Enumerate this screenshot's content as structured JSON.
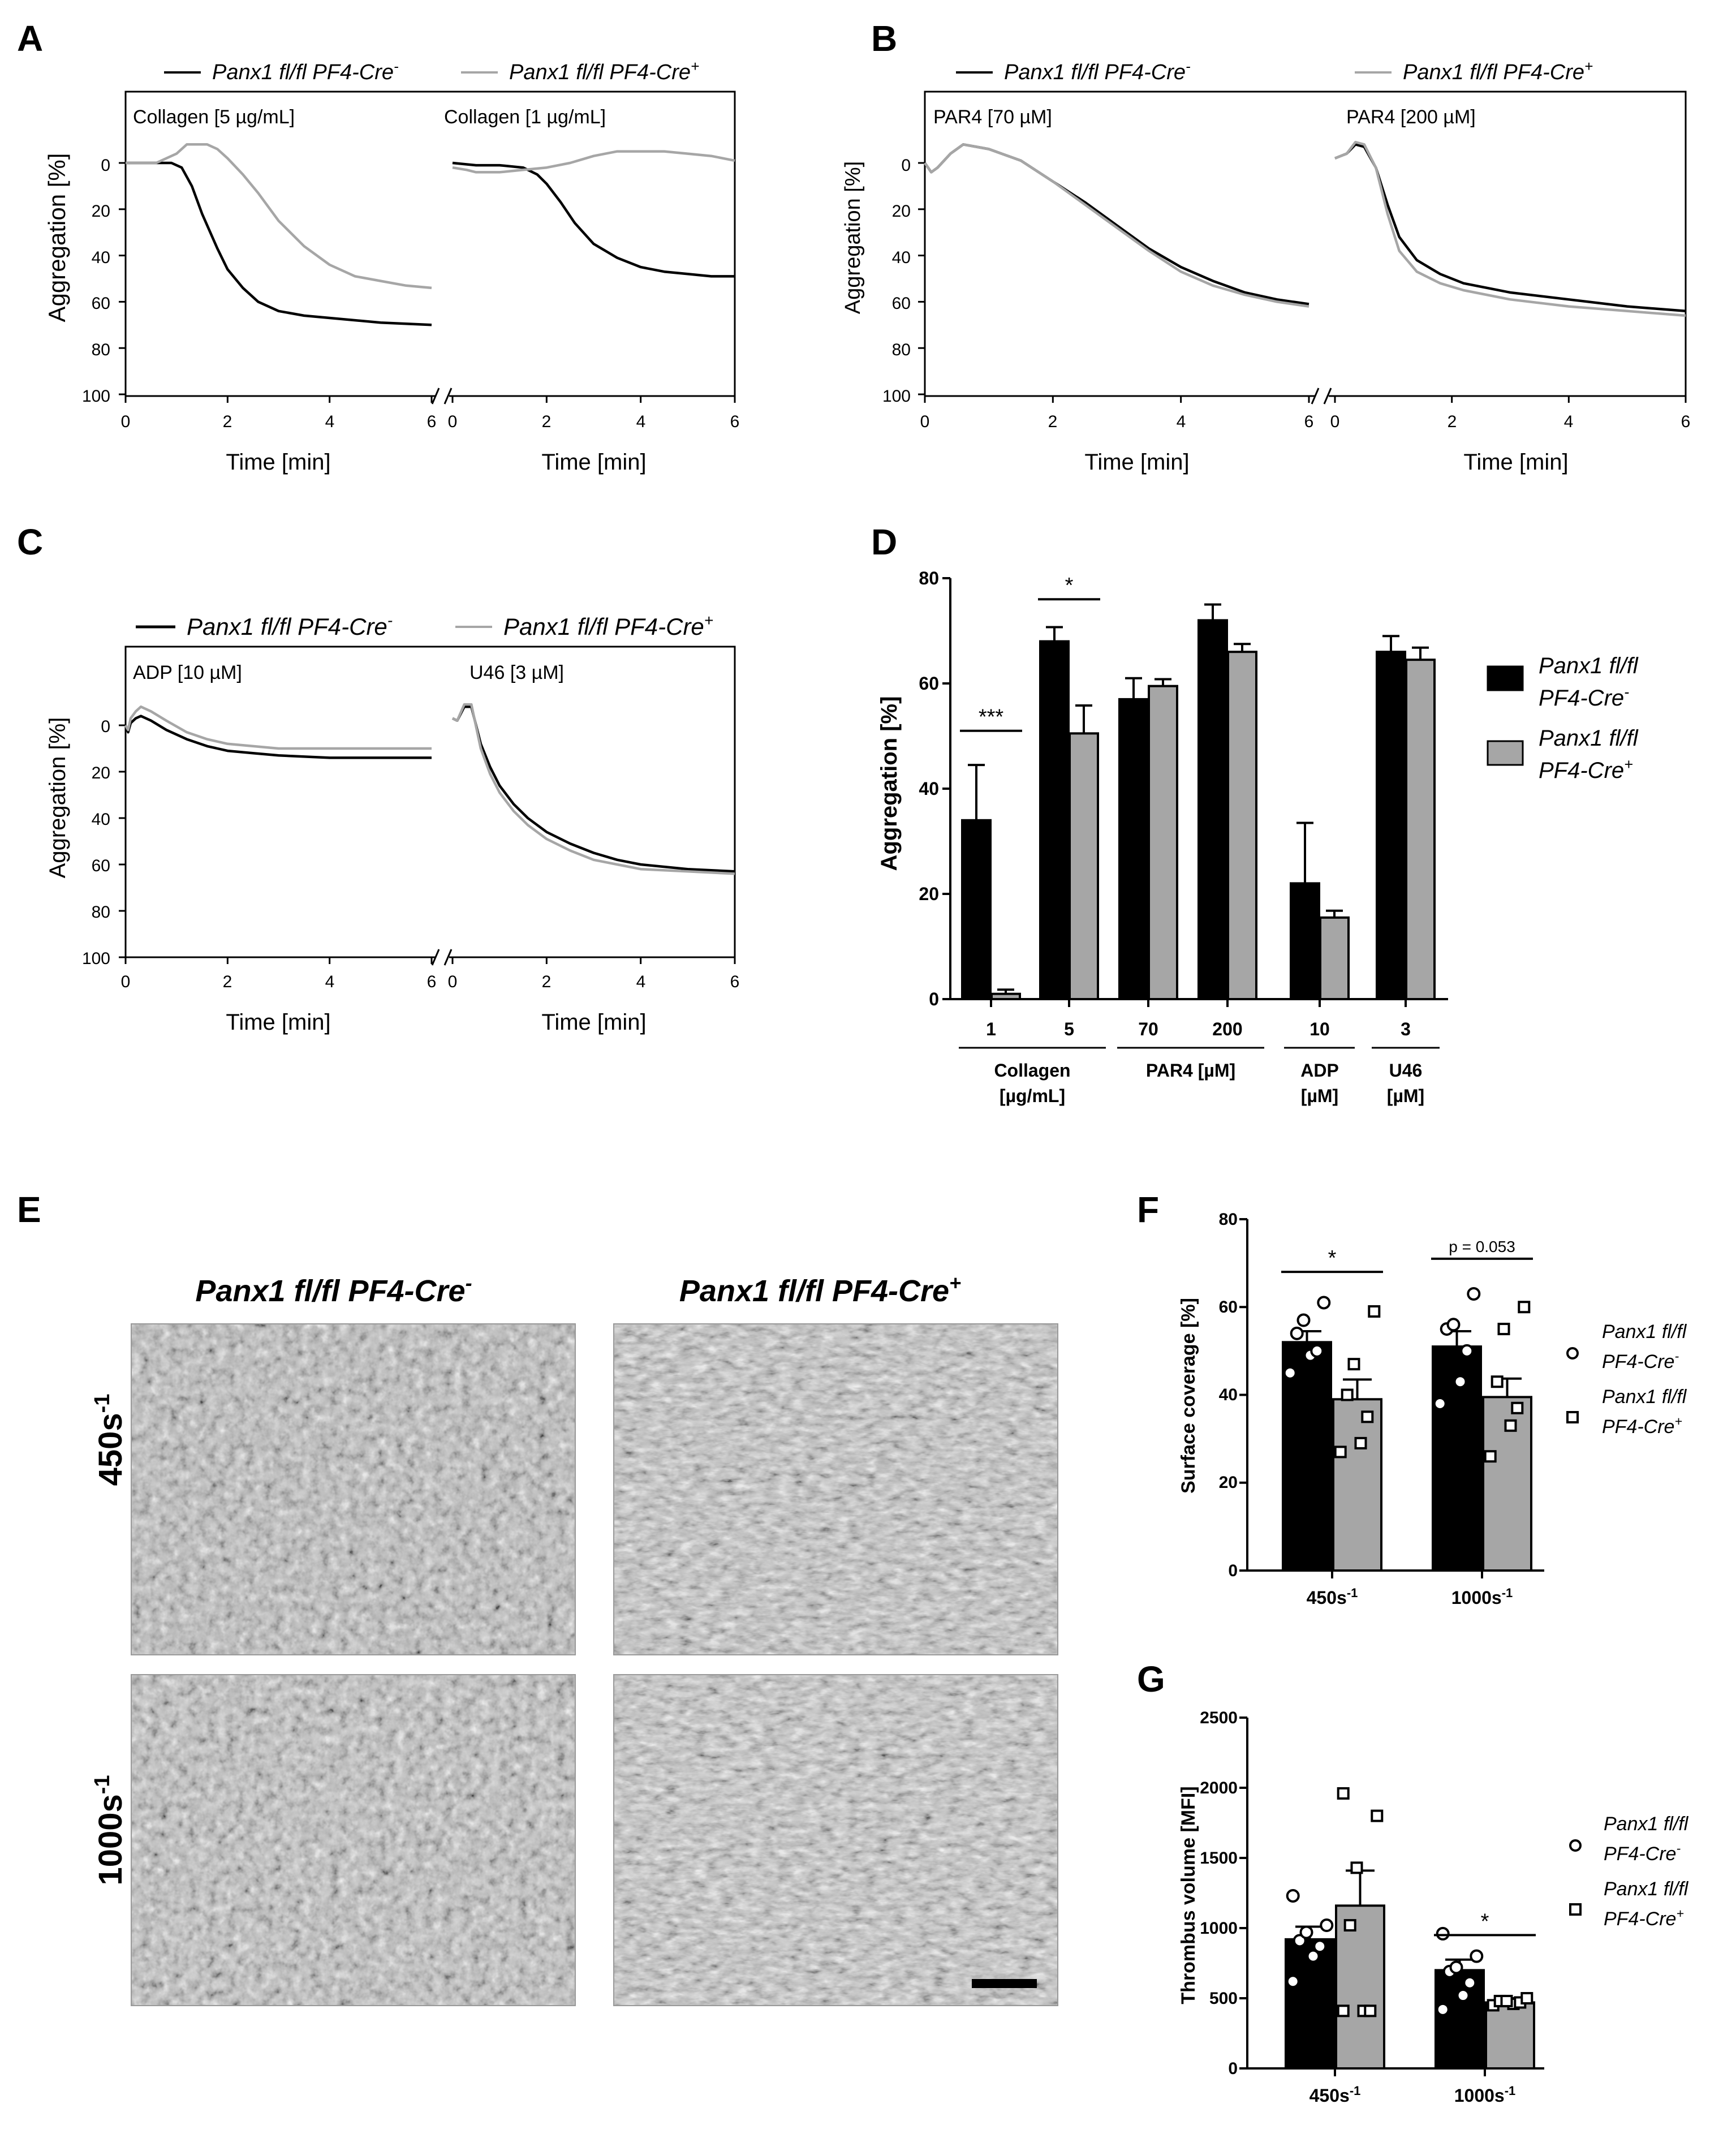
{
  "colors": {
    "cre_neg": "#000000",
    "cre_pos": "#a6a6a6",
    "axis": "#000000"
  },
  "common": {
    "aggregation_label": "Aggregation [%]",
    "time_label": "Time [min]",
    "genotype_base": "Panx1 fl/fl PF4-Cre",
    "genotype_line1": "Panx1 fl/fl",
    "genotype_line2": "PF4-Cre",
    "sup_neg": "-",
    "sup_pos": "+"
  },
  "panel_letters": {
    "A": "A",
    "B": "B",
    "C": "C",
    "D": "D",
    "E": "E",
    "F": "F",
    "G": "G"
  },
  "chart_data": [
    {
      "id": "A",
      "type": "line",
      "ylabel": "Aggregation [%]",
      "xlabel": "Time [min]",
      "ylim": [
        0,
        100
      ],
      "y_inverted": true,
      "y_ticks": [
        "0",
        "20",
        "40",
        "60",
        "80",
        "100"
      ],
      "segments": [
        {
          "title": "Collagen [5 µg/mL]",
          "xlim": [
            0,
            6
          ],
          "x_ticks": [
            "0",
            "2",
            "4",
            "6"
          ],
          "series": [
            {
              "name": "Panx1 fl/fl PF4-Cre-",
              "x": [
                0,
                0.6,
                0.9,
                1.1,
                1.3,
                1.5,
                1.8,
                2.0,
                2.3,
                2.6,
                3.0,
                3.5,
                4.0,
                5.0,
                6.0
              ],
              "y": [
                0,
                0,
                0,
                2,
                10,
                22,
                37,
                46,
                54,
                60,
                64,
                66,
                67,
                69,
                70
              ]
            },
            {
              "name": "Panx1 fl/fl PF4-Cre+",
              "x": [
                0,
                0.6,
                1.0,
                1.2,
                1.4,
                1.6,
                1.8,
                2.0,
                2.3,
                2.6,
                3.0,
                3.5,
                4.0,
                4.5,
                5.0,
                5.5,
                6.0
              ],
              "y": [
                0,
                0,
                -4,
                -8,
                -8,
                -8,
                -6,
                -2,
                5,
                13,
                25,
                36,
                44,
                49,
                51,
                53,
                54
              ]
            }
          ]
        },
        {
          "title": "Collagen [1 µg/mL]",
          "xlim": [
            0,
            6
          ],
          "x_ticks": [
            "0",
            "2",
            "4",
            "6"
          ],
          "series": [
            {
              "name": "Panx1 fl/fl PF4-Cre-",
              "x": [
                0,
                0.5,
                1.0,
                1.5,
                1.8,
                2.0,
                2.3,
                2.6,
                3.0,
                3.5,
                4.0,
                4.5,
                5.0,
                5.5,
                6.0
              ],
              "y": [
                0,
                1,
                1,
                2,
                5,
                9,
                17,
                26,
                35,
                41,
                45,
                47,
                48,
                49,
                49
              ]
            },
            {
              "name": "Panx1 fl/fl PF4-Cre+",
              "x": [
                0,
                0.3,
                0.5,
                1.0,
                1.5,
                2.0,
                2.5,
                3.0,
                3.5,
                4.0,
                4.5,
                5.0,
                5.5,
                6.0
              ],
              "y": [
                2,
                3,
                4,
                4,
                3,
                2,
                0,
                -3,
                -5,
                -5,
                -5,
                -4,
                -3,
                -1
              ]
            }
          ]
        }
      ]
    },
    {
      "id": "B",
      "type": "line",
      "ylabel": "Aggregation [%]",
      "xlabel": "Time [min]",
      "ylim": [
        0,
        100
      ],
      "y_inverted": true,
      "y_ticks": [
        "0",
        "20",
        "40",
        "60",
        "80",
        "100"
      ],
      "segments": [
        {
          "title": "PAR4 [70 µM]",
          "xlim": [
            0,
            6
          ],
          "x_ticks": [
            "0",
            "2",
            "4",
            "6"
          ],
          "series": [
            {
              "name": "Panx1 fl/fl PF4-Cre-",
              "x": [
                0,
                0.1,
                0.2,
                0.4,
                0.6,
                0.8,
                1.0,
                1.5,
                2.0,
                2.5,
                3.0,
                3.5,
                4.0,
                4.5,
                5.0,
                5.5,
                6.0
              ],
              "y": [
                0,
                4,
                2,
                -4,
                -8,
                -7,
                -6,
                -1,
                8,
                17,
                27,
                37,
                45,
                51,
                56,
                59,
                61
              ]
            },
            {
              "name": "Panx1 fl/fl PF4-Cre+",
              "x": [
                0,
                0.1,
                0.2,
                0.4,
                0.6,
                0.8,
                1.0,
                1.5,
                2.0,
                2.5,
                3.0,
                3.5,
                4.0,
                4.5,
                5.0,
                5.5,
                6.0
              ],
              "y": [
                0,
                4,
                2,
                -4,
                -8,
                -7,
                -6,
                -1,
                8,
                18,
                28,
                38,
                47,
                53,
                57,
                60,
                62
              ]
            }
          ]
        },
        {
          "title": "PAR4 [200 µM]",
          "xlim": [
            0,
            6
          ],
          "x_ticks": [
            "0",
            "2",
            "4",
            "6"
          ],
          "series": [
            {
              "name": "Panx1 fl/fl PF4-Cre-",
              "x": [
                0,
                0.1,
                0.2,
                0.35,
                0.5,
                0.7,
                0.9,
                1.1,
                1.4,
                1.8,
                2.2,
                3.0,
                4.0,
                5.0,
                6.0
              ],
              "y": [
                -2,
                -3,
                -4,
                -8,
                -7,
                2,
                18,
                32,
                42,
                48,
                52,
                56,
                59,
                62,
                64
              ]
            },
            {
              "name": "Panx1 fl/fl PF4-Cre+",
              "x": [
                0,
                0.1,
                0.2,
                0.35,
                0.5,
                0.7,
                0.9,
                1.1,
                1.4,
                1.8,
                2.2,
                3.0,
                4.0,
                5.0,
                6.0
              ],
              "y": [
                -2,
                -3,
                -4,
                -9,
                -8,
                2,
                22,
                38,
                47,
                52,
                55,
                59,
                62,
                64,
                66
              ]
            }
          ]
        }
      ]
    },
    {
      "id": "C",
      "type": "line",
      "ylabel": "Aggregation [%]",
      "xlabel": "Time [min]",
      "ylim": [
        0,
        100
      ],
      "y_inverted": true,
      "y_ticks": [
        "0",
        "20",
        "40",
        "60",
        "80",
        "100"
      ],
      "segments": [
        {
          "title": "ADP [10 µM]",
          "xlim": [
            0,
            6
          ],
          "x_ticks": [
            "0",
            "2",
            "4",
            "6"
          ],
          "series": [
            {
              "name": "Panx1 fl/fl PF4-Cre-",
              "x": [
                0,
                0.05,
                0.1,
                0.2,
                0.3,
                0.5,
                0.8,
                1.2,
                1.6,
                2.0,
                2.5,
                3.0,
                4.0,
                5.0,
                6.0
              ],
              "y": [
                0,
                3,
                -1,
                -3,
                -4,
                -2,
                2,
                6,
                9,
                11,
                12,
                13,
                14,
                14,
                14
              ]
            },
            {
              "name": "Panx1 fl/fl PF4-Cre+",
              "x": [
                0,
                0.05,
                0.1,
                0.2,
                0.3,
                0.5,
                0.8,
                1.2,
                1.6,
                2.0,
                2.5,
                3.0,
                4.0,
                5.0,
                6.0
              ],
              "y": [
                0,
                2,
                -3,
                -6,
                -8,
                -6,
                -2,
                3,
                6,
                8,
                9,
                10,
                10,
                10,
                10
              ]
            }
          ]
        },
        {
          "title": "U46 [3 µM]",
          "xlim": [
            0,
            6
          ],
          "x_ticks": [
            "0",
            "2",
            "4",
            "6"
          ],
          "series": [
            {
              "name": "Panx1 fl/fl PF4-Cre-",
              "x": [
                0,
                0.1,
                0.25,
                0.4,
                0.6,
                0.8,
                1.0,
                1.3,
                1.6,
                2.0,
                2.5,
                3.0,
                3.5,
                4.0,
                5.0,
                6.0
              ],
              "y": [
                -3,
                -2,
                -8,
                -8,
                8,
                18,
                26,
                34,
                40,
                46,
                51,
                55,
                58,
                60,
                62,
                63
              ]
            },
            {
              "name": "Panx1 fl/fl PF4-Cre+",
              "x": [
                0,
                0.1,
                0.25,
                0.4,
                0.6,
                0.8,
                1.0,
                1.3,
                1.6,
                2.0,
                2.5,
                3.0,
                3.5,
                4.0,
                5.0,
                6.0
              ],
              "y": [
                -3,
                -2,
                -9,
                -9,
                10,
                21,
                29,
                37,
                43,
                49,
                54,
                58,
                60,
                62,
                63,
                64
              ]
            }
          ]
        }
      ]
    },
    {
      "id": "D",
      "type": "bar",
      "ylabel": "Aggregation [%]",
      "ylim": [
        0,
        80
      ],
      "y_ticks": [
        "0",
        "20",
        "40",
        "60",
        "80"
      ],
      "categories": [
        "1",
        "5",
        "70",
        "200",
        "10",
        "3"
      ],
      "series": [
        {
          "name": "Panx1 fl/fl PF4-Cre-",
          "values": [
            34,
            68,
            57,
            72,
            22,
            66
          ],
          "errors": [
            10.5,
            2.7,
            4,
            3,
            11.5,
            3
          ]
        },
        {
          "name": "Panx1 fl/fl PF4-Cre+",
          "values": [
            1,
            50.5,
            59.5,
            66,
            15.5,
            64.5
          ],
          "errors": [
            0.8,
            5.3,
            1.3,
            1.5,
            1.3,
            2.3
          ]
        }
      ],
      "groups": [
        {
          "label1": "Collagen",
          "label2": "[µg/mL]",
          "categories": [
            0,
            1
          ]
        },
        {
          "label1": "PAR4 [µM]",
          "label2": "",
          "categories": [
            2,
            3
          ]
        },
        {
          "label1": "ADP",
          "label2": "[µM]",
          "categories": [
            4
          ]
        },
        {
          "label1": "U46",
          "label2": "[µM]",
          "categories": [
            5
          ]
        }
      ],
      "significance": [
        {
          "label": "***",
          "category": 0,
          "y": 51
        },
        {
          "label": "*",
          "category": 1,
          "y": 76
        }
      ]
    },
    {
      "id": "F",
      "type": "bar",
      "ylabel": "Surface coverage [%]",
      "ylim": [
        0,
        80
      ],
      "y_ticks": [
        "0",
        "20",
        "40",
        "60",
        "80"
      ],
      "categories": [
        "450s",
        "1000s"
      ],
      "category_sup": "-1",
      "series": [
        {
          "name": "Panx1 fl/fl PF4-Cre-",
          "values": [
            52,
            51
          ],
          "errors": [
            2.5,
            3.5
          ],
          "points": [
            [
              45,
              49,
              50,
              54,
              57,
              61
            ],
            [
              38,
              43,
              50,
              55,
              56,
              63
            ]
          ]
        },
        {
          "name": "Panx1 fl/fl PF4-Cre+",
          "values": [
            39,
            39.5
          ],
          "errors": [
            4.5,
            4.2
          ],
          "points": [
            [
              27,
              29,
              35,
              40,
              47,
              59
            ],
            [
              26,
              33,
              37,
              43,
              55,
              60
            ]
          ]
        }
      ],
      "significance": [
        {
          "label": "*",
          "category": 0,
          "y": 68
        },
        {
          "label": "p = 0.053",
          "category": 1,
          "y": 71
        }
      ]
    },
    {
      "id": "G",
      "type": "bar",
      "ylabel": "Thrombus volume [MFI]",
      "ylim": [
        0,
        2500
      ],
      "y_ticks": [
        "0",
        "500",
        "1000",
        "1500",
        "2000",
        "2500"
      ],
      "categories": [
        "450s",
        "1000s"
      ],
      "category_sup": "-1",
      "series": [
        {
          "name": "Panx1 fl/fl PF4-Cre-",
          "values": [
            920,
            700
          ],
          "errors": [
            90,
            75
          ],
          "points": [
            [
              620,
              800,
              870,
              910,
              970,
              1020,
              1230
            ],
            [
              420,
              520,
              610,
              690,
              720,
              800,
              960
            ]
          ]
        },
        {
          "name": "Panx1 fl/fl PF4-Cre+",
          "values": [
            1160,
            470
          ],
          "errors": [
            250,
            30
          ],
          "points": [
            [
              410,
              410,
              410,
              1020,
              1430,
              1800,
              1960
            ],
            [
              450,
              460,
              470,
              480,
              480,
              500
            ]
          ]
        }
      ],
      "significance": [
        {
          "label": "*",
          "category": 1,
          "y": 950
        }
      ]
    }
  ],
  "panel_E": {
    "col_headers": [
      "Panx1 fl/fl PF4-Cre",
      "Panx1 fl/fl PF4-Cre"
    ],
    "col_sups": [
      "-",
      "+"
    ],
    "row_labels": [
      "450s",
      "1000s"
    ],
    "row_sup": "-1"
  }
}
